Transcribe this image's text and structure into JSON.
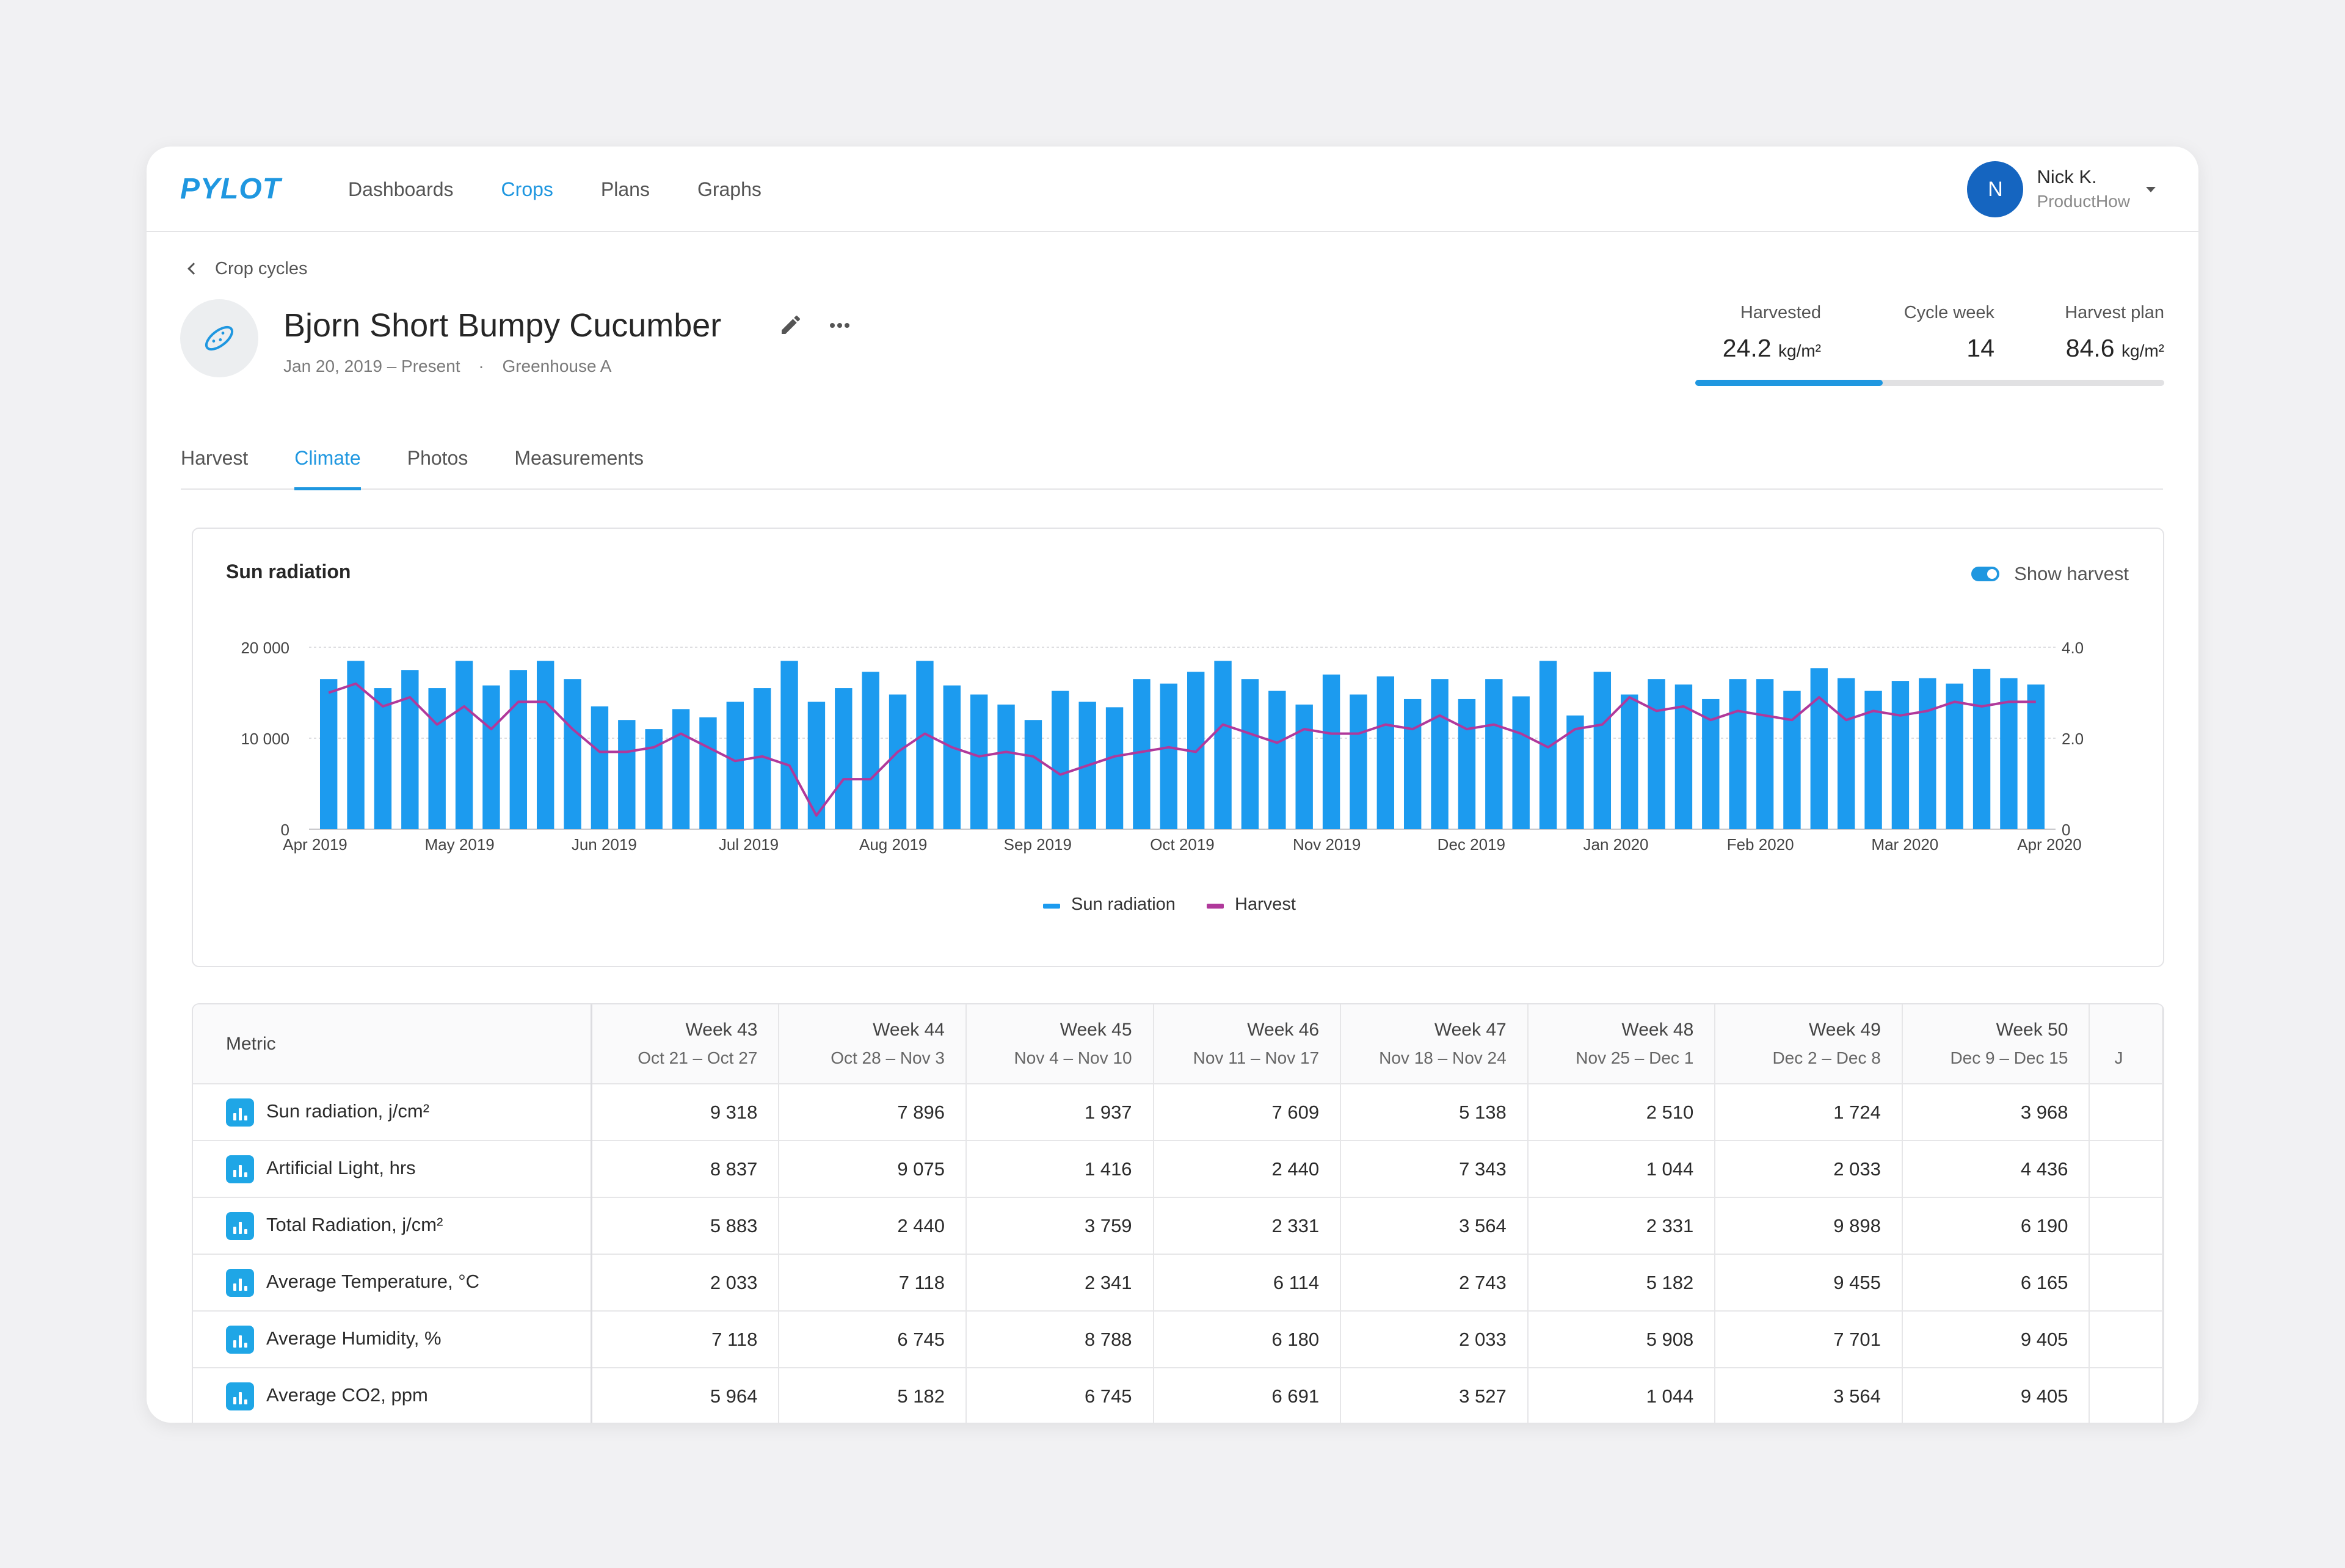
{
  "nav": {
    "logo": "PYLOT",
    "links": [
      "Dashboards",
      "Crops",
      "Plans",
      "Graphs"
    ],
    "active": "Crops",
    "user": {
      "initial": "N",
      "name": "Nick K.",
      "org": "ProductHow"
    }
  },
  "header": {
    "back_label": "Crop cycles",
    "title": "Bjorn Short Bumpy Cucumber",
    "date_range": "Jan 20, 2019 – Present",
    "separator": "·",
    "location": "Greenhouse A",
    "stats": [
      {
        "label": "Harvested",
        "value": "24.2",
        "unit": "kg/m²"
      },
      {
        "label": "Cycle week",
        "value": "14",
        "unit": ""
      },
      {
        "label": "Harvest plan",
        "value": "84.6",
        "unit": "kg/m²"
      }
    ],
    "harvest_progress": 0.4
  },
  "tabs": [
    "Harvest",
    "Climate",
    "Photos",
    "Measurements"
  ],
  "active_tab": "Climate",
  "chart": {
    "title": "Sun radiation",
    "toggle_label": "Show harvest",
    "toggle_on": true,
    "legend": [
      "Sun radiation",
      "Harvest"
    ]
  },
  "chart_data": {
    "type": "bar",
    "title": "Sun radiation",
    "y_left_ticks": [
      "20 000",
      "10 000",
      "0"
    ],
    "y_right_ticks": [
      "4.0",
      "2.0",
      "0"
    ],
    "ylim": [
      0,
      20000
    ],
    "y2lim": [
      0,
      4.0
    ],
    "x_ticks": [
      "Apr 2019",
      "May 2019",
      "Jun 2019",
      "Jul 2019",
      "Aug 2019",
      "Sep 2019",
      "Oct 2019",
      "Nov 2019",
      "Dec 2019",
      "Jan 2020",
      "Feb 2020",
      "Mar 2020",
      "Apr 2020"
    ],
    "series": [
      {
        "name": "Sun radiation",
        "type": "bar",
        "color": "#1c9bef",
        "values": [
          16500,
          18500,
          15500,
          17500,
          15500,
          18500,
          15800,
          17500,
          18500,
          16500,
          13500,
          12000,
          11000,
          13200,
          12300,
          14000,
          15500,
          18500,
          14000,
          15500,
          17300,
          14800,
          18500,
          15800,
          14800,
          13700,
          12000,
          15200,
          14000,
          13400,
          16500,
          16000,
          17300,
          18500,
          16500,
          15200,
          13700,
          17000,
          14800,
          16800,
          14300,
          16500,
          14300,
          16500,
          14600,
          18500,
          12500,
          17300,
          14800,
          16500,
          15900,
          14300,
          16500,
          16500,
          15200,
          17700,
          16600,
          15200,
          16300,
          16600,
          16000,
          17600,
          16600,
          15900
        ]
      },
      {
        "name": "Harvest",
        "type": "line",
        "color": "#b0399b",
        "values": [
          3.0,
          3.2,
          2.7,
          2.9,
          2.3,
          2.7,
          2.2,
          2.8,
          2.8,
          2.2,
          1.7,
          1.7,
          1.8,
          2.1,
          1.8,
          1.5,
          1.6,
          1.4,
          0.3,
          1.1,
          1.1,
          1.7,
          2.1,
          1.8,
          1.6,
          1.7,
          1.6,
          1.2,
          1.4,
          1.6,
          1.7,
          1.8,
          1.7,
          2.3,
          2.1,
          1.9,
          2.2,
          2.1,
          2.1,
          2.3,
          2.2,
          2.5,
          2.2,
          2.3,
          2.1,
          1.8,
          2.2,
          2.3,
          2.9,
          2.6,
          2.7,
          2.4,
          2.6,
          2.5,
          2.4,
          2.9,
          2.4,
          2.6,
          2.5,
          2.6,
          2.8,
          2.7,
          2.8,
          2.8
        ]
      }
    ],
    "legend_position": "bottom",
    "grid": true
  },
  "table": {
    "metric_header": "Metric",
    "weeks": [
      {
        "label": "Week 43",
        "range": "Oct 21 – Oct 27"
      },
      {
        "label": "Week 44",
        "range": "Oct 28 – Nov 3"
      },
      {
        "label": "Week 45",
        "range": "Nov 4 – Nov 10"
      },
      {
        "label": "Week 46",
        "range": "Nov 11 – Nov 17"
      },
      {
        "label": "Week 47",
        "range": "Nov 18 – Nov 24"
      },
      {
        "label": "Week 48",
        "range": "Nov 25 – Dec 1"
      },
      {
        "label": "Week 49",
        "range": "Dec 2 – Dec 8"
      },
      {
        "label": "Week 50",
        "range": "Dec 9 – Dec 15"
      }
    ],
    "partial_col_hint": "J",
    "rows": [
      {
        "metric": "Sun radiation, j/cm²",
        "values": [
          "9 318",
          "7 896",
          "1 937",
          "7 609",
          "5 138",
          "2 510",
          "1 724",
          "3 968"
        ]
      },
      {
        "metric": "Artificial Light, hrs",
        "values": [
          "8 837",
          "9 075",
          "1 416",
          "2 440",
          "7 343",
          "1 044",
          "2 033",
          "4 436"
        ]
      },
      {
        "metric": "Total Radiation, j/cm²",
        "values": [
          "5 883",
          "2 440",
          "3 759",
          "2 331",
          "3 564",
          "2 331",
          "9 898",
          "6 190"
        ]
      },
      {
        "metric": "Average Temperature, °C",
        "values": [
          "2 033",
          "7 118",
          "2 341",
          "6 114",
          "2 743",
          "5 182",
          "9 455",
          "6 165"
        ]
      },
      {
        "metric": "Average Humidity, %",
        "values": [
          "7 118",
          "6 745",
          "8 788",
          "6 180",
          "2 033",
          "5 908",
          "7 701",
          "9 405"
        ]
      },
      {
        "metric": "Average CO2, ppm",
        "values": [
          "5 964",
          "5 182",
          "6 745",
          "6 691",
          "3 527",
          "1 044",
          "3 564",
          "9 405"
        ]
      }
    ]
  }
}
